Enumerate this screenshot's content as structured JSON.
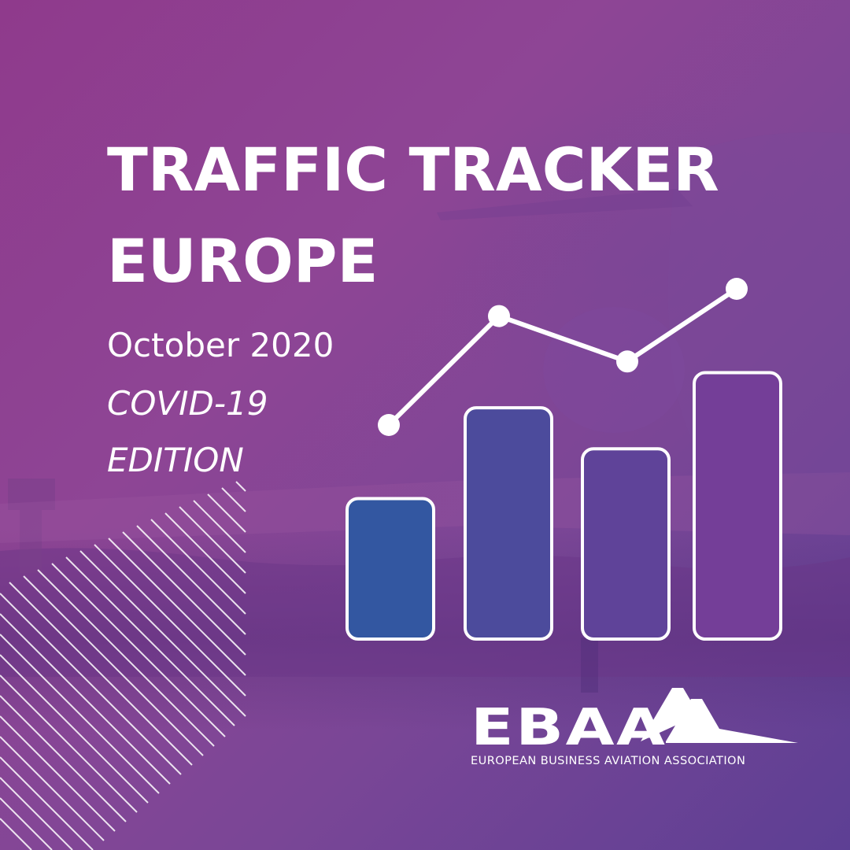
{
  "title": {
    "line1": "TRAFFIC TRACKER",
    "line2": "EUROPE"
  },
  "subtitle": {
    "date": "October 2020",
    "edition_line1": "COVID-19",
    "edition_line2": "EDITION"
  },
  "logo": {
    "name": "EBAA",
    "full_name": "EUROPEAN BUSINESS AVIATION ASSOCIATION"
  },
  "colors": {
    "background_top": "#8f3a8c",
    "background_bottom": "#5d3f94",
    "text": "#ffffff",
    "bars": [
      "#3357a1",
      "#4c4b9c",
      "#5f4399",
      "#743e98"
    ]
  },
  "icons": [
    "diagonal-stripes-icon",
    "bar-chart-icon",
    "trend-line-icon",
    "airplane-photo-background",
    "ebaa-wing-logo"
  ],
  "graphic": {
    "bars": [
      0.48,
      0.79,
      0.65,
      0.91
    ],
    "line": [
      0.55,
      0.91,
      0.76,
      1.0
    ]
  }
}
